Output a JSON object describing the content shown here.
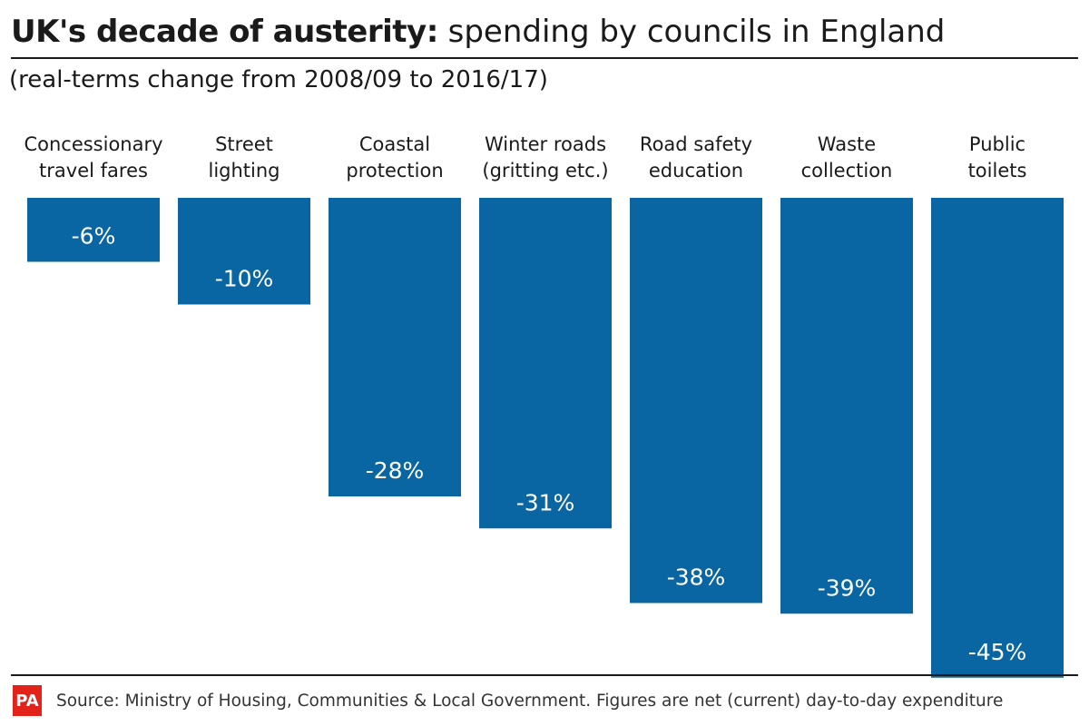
{
  "title_bold": "UK's decade of austerity:",
  "title_rest": " spending by councils in England",
  "subtitle": "(real-terms change from 2008/09 to 2016/17)",
  "source": "Source: Ministry of Housing, Communities & Local Government. Figures are net (current) day-to-day expenditure",
  "logo_text": "PA",
  "colors": {
    "bar": "#0a66a2",
    "bar_label": "#ffffff",
    "logo": "#e2231a"
  },
  "chart_data": {
    "type": "bar",
    "categories": [
      [
        "Concessionary",
        "travel fares"
      ],
      [
        "Street",
        "lighting"
      ],
      [
        "Coastal",
        "protection"
      ],
      [
        "Winter roads",
        "(gritting etc.)"
      ],
      [
        "Road safety",
        "education"
      ],
      [
        "Waste",
        "collection"
      ],
      [
        "Public",
        "toilets"
      ]
    ],
    "values": [
      -6,
      -10,
      -28,
      -31,
      -38,
      -39,
      -45
    ],
    "labels": [
      "-6%",
      "-10%",
      "-28%",
      "-31%",
      "-38%",
      "-39%",
      "-45%"
    ],
    "ylim": [
      -45,
      0
    ],
    "grid": false,
    "legend": "none"
  }
}
